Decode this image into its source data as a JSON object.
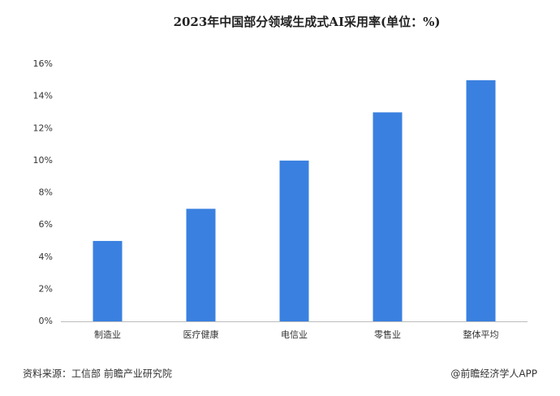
{
  "chart_data": {
    "type": "bar",
    "title": "2023年中国部分领域生成式AI采用率(单位：%)",
    "categories": [
      "制造业",
      "医疗健康",
      "电信业",
      "零售业",
      "整体平均"
    ],
    "values": [
      5,
      7,
      10,
      13,
      15
    ],
    "color": "#3a80e0",
    "ylim": [
      0,
      16
    ],
    "yticks": [
      {
        "value": 0,
        "label": "0%"
      },
      {
        "value": 2,
        "label": "2%"
      },
      {
        "value": 4,
        "label": "4%"
      },
      {
        "value": 6,
        "label": "6%"
      },
      {
        "value": 8,
        "label": "8%"
      },
      {
        "value": 10,
        "label": "10%"
      },
      {
        "value": 12,
        "label": "12%"
      },
      {
        "value": 14,
        "label": "14%"
      },
      {
        "value": 16,
        "label": "16%"
      }
    ],
    "grid": false,
    "source": "资料来源：工信部 前瞻产业研究院",
    "credit": "@前瞻经济学人APP"
  }
}
